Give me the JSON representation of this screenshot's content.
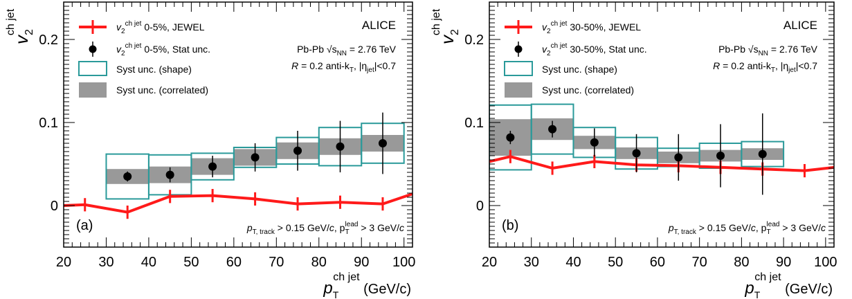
{
  "chart_data": [
    {
      "type": "scatter",
      "panel_label": "(a)",
      "experiment": "ALICE",
      "collision_text": "Pb-Pb  √s",
      "collision_sub": "NN",
      "collision_value": " = 2.76 TeV",
      "jet_def_R": "R",
      "jet_def_text": " = 0.2 anti-k",
      "jet_def_kt_sub": "T",
      "jet_def_eta": ", |η",
      "jet_def_eta_sub": "jet",
      "jet_def_cut": "|<0.7",
      "cuts_p": "p",
      "cuts_sub1": "T, track",
      "cuts_text1": " > 0.15 GeV/",
      "cuts_c": "c",
      "cuts_text2": ", p",
      "cuts_sub2": "T",
      "cuts_sup2": "lead",
      "cuts_text3": " > 3 GeV/",
      "xlabel": "p",
      "xlabel_sub": "T",
      "xlabel_sup": "ch jet",
      "xlabel_unit": " (GeV/c)",
      "ylabel": "v",
      "ylabel_sub": "2",
      "ylabel_sup": "ch jet",
      "xlim": [
        20,
        102
      ],
      "ylim": [
        -0.05,
        0.245
      ],
      "xticks": [
        "20",
        "30",
        "40",
        "50",
        "60",
        "70",
        "80",
        "90",
        "100"
      ],
      "xtick_values": [
        20,
        30,
        40,
        50,
        60,
        70,
        80,
        90,
        100
      ],
      "yticks": [
        "0",
        "0.1",
        "0.2"
      ],
      "ytick_values": [
        0,
        0.1,
        0.2
      ],
      "legend": {
        "jewel_v": "v",
        "jewel_sub": "2",
        "jewel_sup": "ch jet",
        "jewel_text": " 0-5%, JEWEL",
        "stat_v": "v",
        "stat_sub": "2",
        "stat_sup": "ch jet",
        "stat_text": " 0-5%, Stat unc.",
        "shape": "Syst unc. (shape)",
        "correlated": "Syst unc. (correlated)"
      },
      "colors": {
        "jewel": "#ff1a1a",
        "shape": "#2a9a9a",
        "correlated": "#999999",
        "data": "#000000"
      },
      "data": {
        "x": [
          35,
          45,
          55,
          65,
          75,
          85,
          95
        ],
        "y": [
          0.035,
          0.037,
          0.047,
          0.058,
          0.066,
          0.071,
          0.075
        ],
        "stat_err": [
          0.006,
          0.009,
          0.013,
          0.017,
          0.024,
          0.031,
          0.037
        ],
        "syst_shape": [
          0.027,
          0.024,
          0.016,
          0.012,
          0.016,
          0.023,
          0.024
        ],
        "syst_corr": [
          0.009,
          0.01,
          0.01,
          0.01,
          0.01,
          0.01,
          0.01
        ]
      },
      "jewel": {
        "x": [
          20,
          25,
          35,
          45,
          55,
          65,
          75,
          85,
          95,
          102
        ],
        "y": [
          0.0,
          0.001,
          -0.008,
          0.011,
          0.012,
          0.008,
          0.002,
          0.004,
          0.002,
          0.014
        ],
        "err": [
          0,
          0.008,
          0.008,
          0.008,
          0.008,
          0.008,
          0.008,
          0.008,
          0.008,
          0
        ]
      }
    },
    {
      "type": "scatter",
      "panel_label": "(b)",
      "experiment": "ALICE",
      "collision_text": "Pb-Pb  √s",
      "collision_sub": "NN",
      "collision_value": " = 2.76 TeV",
      "jet_def_R": "R",
      "jet_def_text": " = 0.2 anti-k",
      "jet_def_kt_sub": "T",
      "jet_def_eta": ", |η",
      "jet_def_eta_sub": "jet",
      "jet_def_cut": "|<0.7",
      "cuts_p": "p",
      "cuts_sub1": "T, track",
      "cuts_text1": " > 0.15 GeV/",
      "cuts_c": "c",
      "cuts_text2": ", p",
      "cuts_sub2": "T",
      "cuts_sup2": "lead",
      "cuts_text3": " > 3 GeV/",
      "xlabel": "p",
      "xlabel_sub": "T",
      "xlabel_sup": "ch jet",
      "xlabel_unit": " (GeV/c)",
      "ylabel": "v",
      "ylabel_sub": "2",
      "ylabel_sup": "ch jet",
      "xlim": [
        20,
        102
      ],
      "ylim": [
        -0.05,
        0.245
      ],
      "xticks": [
        "20",
        "30",
        "40",
        "50",
        "60",
        "70",
        "80",
        "90",
        "100"
      ],
      "xtick_values": [
        20,
        30,
        40,
        50,
        60,
        70,
        80,
        90,
        100
      ],
      "yticks": [
        "0",
        "0.1",
        "0.2"
      ],
      "ytick_values": [
        0,
        0.1,
        0.2
      ],
      "legend": {
        "jewel_v": "v",
        "jewel_sub": "2",
        "jewel_sup": "ch jet",
        "jewel_text": " 30-50%, JEWEL",
        "stat_v": "v",
        "stat_sub": "2",
        "stat_sup": "ch jet",
        "stat_text": " 30-50%, Stat unc.",
        "shape": "Syst unc. (shape)",
        "correlated": "Syst unc. (correlated)"
      },
      "colors": {
        "jewel": "#ff1a1a",
        "shape": "#2a9a9a",
        "correlated": "#999999",
        "data": "#000000"
      },
      "data": {
        "x": [
          25,
          35,
          45,
          55,
          65,
          75,
          85
        ],
        "y": [
          0.082,
          0.092,
          0.076,
          0.063,
          0.058,
          0.06,
          0.062
        ],
        "stat_err": [
          0.008,
          0.01,
          0.017,
          0.023,
          0.028,
          0.038,
          0.049
        ],
        "syst_shape": [
          0.039,
          0.03,
          0.018,
          0.019,
          0.011,
          0.015,
          0.015
        ],
        "syst_corr": [
          0.022,
          0.013,
          0.008,
          0.007,
          0.007,
          0.007,
          0.007
        ]
      },
      "jewel": {
        "x": [
          20,
          25,
          35,
          45,
          55,
          65,
          75,
          85,
          95,
          102
        ],
        "y": [
          0.053,
          0.059,
          0.045,
          0.053,
          0.049,
          0.048,
          0.046,
          0.044,
          0.042,
          0.046
        ],
        "err": [
          0,
          0.008,
          0.008,
          0.008,
          0.008,
          0.008,
          0.008,
          0.008,
          0.008,
          0
        ]
      }
    }
  ]
}
